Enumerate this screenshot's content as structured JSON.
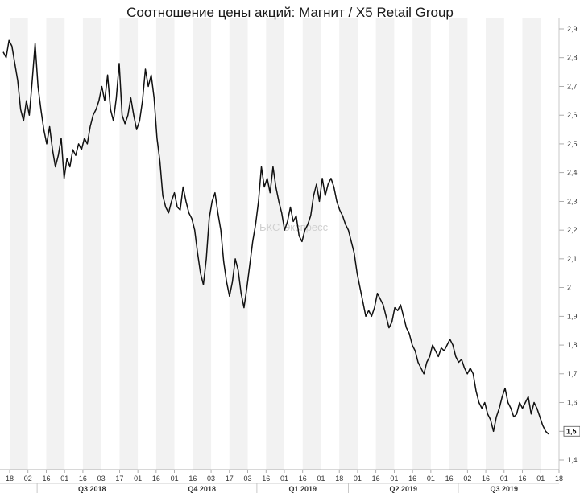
{
  "chart_data": {
    "type": "line",
    "title": "Соотношение цены акций: Магнит / X5 Retail Group",
    "watermark": "БКС Экспресс",
    "ylim": [
      1.4,
      2.9
    ],
    "yticks": [
      "1,4",
      "1,5",
      "1,6",
      "1,7",
      "1,8",
      "1,9",
      "2",
      "2,1",
      "2,2",
      "2,3",
      "2,4",
      "2,5",
      "2,6",
      "2,7",
      "2,8",
      "2,9"
    ],
    "last_value_label": "1,5",
    "x_tick_labels": [
      "18",
      "02",
      "16",
      "01",
      "16",
      "03",
      "17",
      "01",
      "16",
      "01",
      "16",
      "03",
      "17",
      "03",
      "16",
      "01",
      "16",
      "01",
      "18",
      "01",
      "16",
      "01",
      "16",
      "01",
      "16",
      "02",
      "16",
      "01",
      "16",
      "01",
      "18"
    ],
    "quarter_labels": [
      "Q3 2018",
      "Q4 2018",
      "Q1 2019",
      "Q2 2019",
      "Q3 2019"
    ],
    "grid": "alternating-vertical-bands",
    "series": [
      {
        "values": [
          2.82,
          2.8,
          2.86,
          2.84,
          2.78,
          2.72,
          2.62,
          2.58,
          2.65,
          2.6,
          2.72,
          2.85,
          2.7,
          2.62,
          2.55,
          2.5,
          2.56,
          2.48,
          2.42,
          2.46,
          2.52,
          2.38,
          2.45,
          2.42,
          2.48,
          2.46,
          2.5,
          2.48,
          2.52,
          2.5,
          2.56,
          2.6,
          2.62,
          2.65,
          2.7,
          2.65,
          2.74,
          2.62,
          2.58,
          2.66,
          2.78,
          2.6,
          2.57,
          2.6,
          2.66,
          2.6,
          2.55,
          2.58,
          2.65,
          2.76,
          2.7,
          2.74,
          2.66,
          2.52,
          2.44,
          2.32,
          2.28,
          2.26,
          2.3,
          2.33,
          2.28,
          2.27,
          2.35,
          2.3,
          2.26,
          2.24,
          2.2,
          2.12,
          2.05,
          2.01,
          2.1,
          2.24,
          2.3,
          2.33,
          2.26,
          2.2,
          2.09,
          2.02,
          1.97,
          2.02,
          2.1,
          2.06,
          1.98,
          1.93,
          2.0,
          2.08,
          2.16,
          2.22,
          2.3,
          2.42,
          2.35,
          2.38,
          2.33,
          2.42,
          2.35,
          2.3,
          2.26,
          2.2,
          2.23,
          2.28,
          2.23,
          2.25,
          2.18,
          2.16,
          2.2,
          2.22,
          2.25,
          2.32,
          2.36,
          2.3,
          2.38,
          2.32,
          2.36,
          2.38,
          2.35,
          2.3,
          2.27,
          2.25,
          2.22,
          2.2,
          2.16,
          2.12,
          2.05,
          2.0,
          1.95,
          1.9,
          1.92,
          1.9,
          1.93,
          1.98,
          1.96,
          1.94,
          1.9,
          1.86,
          1.88,
          1.93,
          1.92,
          1.94,
          1.9,
          1.86,
          1.84,
          1.8,
          1.78,
          1.74,
          1.72,
          1.7,
          1.74,
          1.76,
          1.8,
          1.78,
          1.76,
          1.79,
          1.78,
          1.8,
          1.82,
          1.8,
          1.76,
          1.74,
          1.75,
          1.72,
          1.7,
          1.72,
          1.7,
          1.64,
          1.6,
          1.58,
          1.6,
          1.56,
          1.54,
          1.5,
          1.55,
          1.58,
          1.62,
          1.65,
          1.6,
          1.58,
          1.55,
          1.56,
          1.6,
          1.58,
          1.6,
          1.62,
          1.56,
          1.6,
          1.58,
          1.55,
          1.52,
          1.5,
          1.49
        ]
      }
    ]
  }
}
